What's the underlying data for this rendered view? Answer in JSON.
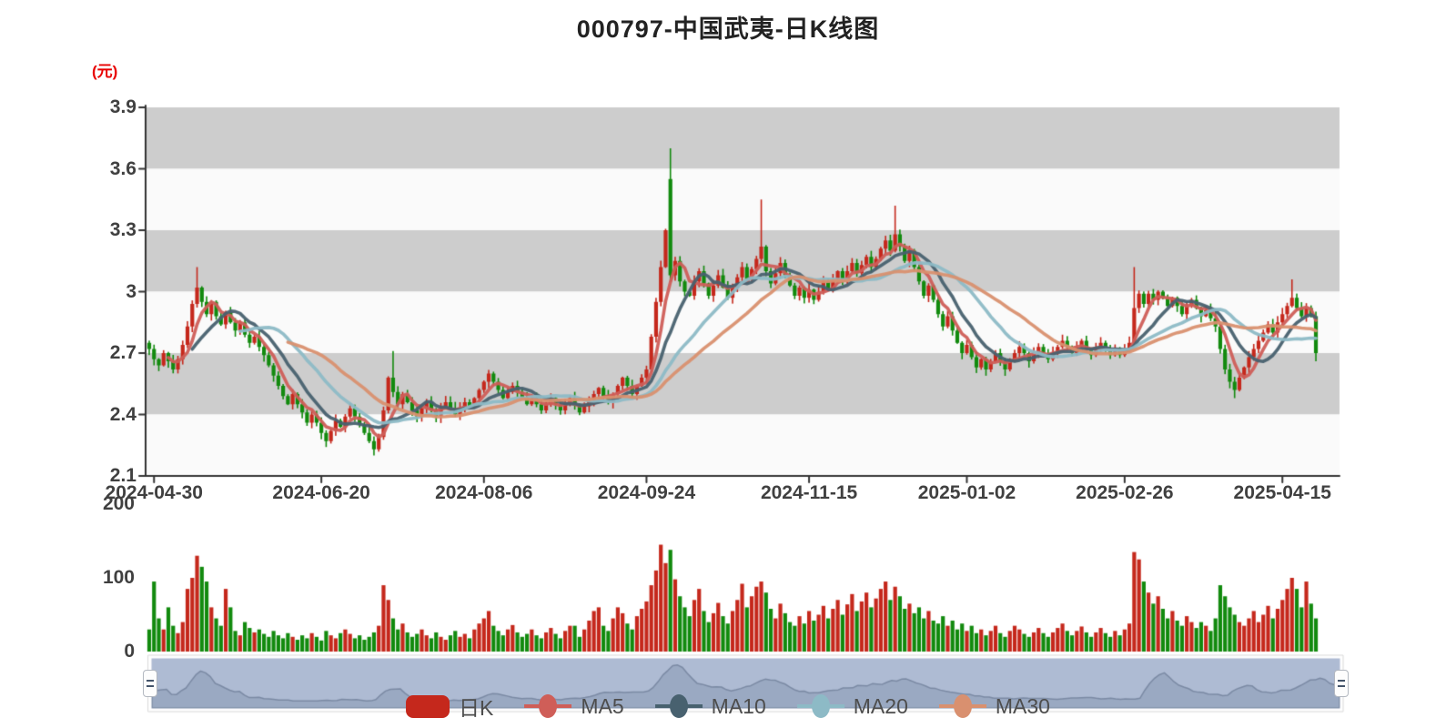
{
  "title": "000797-中国武夷-日K线图",
  "unit_label": "(元)",
  "colors": {
    "up_red": "#c5281c",
    "down_green": "#128a0e",
    "ma5": "#cf5e58",
    "ma10": "#48616f",
    "ma20": "#8dbac6",
    "ma30": "#d9906f",
    "axis": "#333333",
    "band_gray": "#cdcdcd",
    "band_light": "#fafafa",
    "unit_label_color": "#e80000",
    "nav_fill": "#aebbd3",
    "nav_line": "#7b8aa4",
    "nav_area": "rgba(110,128,156,0.30)"
  },
  "legend": {
    "items": [
      {
        "label": "日K",
        "type": "candlestick",
        "color": "#c5281c"
      },
      {
        "label": "MA5",
        "type": "line",
        "color": "#cf5e58"
      },
      {
        "label": "MA10",
        "type": "line",
        "color": "#48616f"
      },
      {
        "label": "MA20",
        "type": "line",
        "color": "#8dbac6"
      },
      {
        "label": "MA30",
        "type": "line",
        "color": "#d9906f"
      }
    ]
  },
  "price_axis": {
    "ticks": [
      "3.9",
      "3.6",
      "3.3",
      "3",
      "2.7",
      "2.4",
      "2.1"
    ],
    "max": 3.9,
    "min": 2.1
  },
  "volume_axis": {
    "ticks": [
      "200",
      "100",
      "0"
    ],
    "max": 200,
    "min": 0
  },
  "chart_data": {
    "type": "candlestick+volume+ma",
    "title": "000797-中国武夷-日K线图",
    "ylabel": "(元)",
    "ylim": [
      2.1,
      3.9
    ],
    "volume_ylim": [
      0,
      200
    ],
    "grid": "alternating-bands",
    "legend_position": "bottom-center",
    "x_tick_labels": [
      "2024-04-30",
      "2024-06-20",
      "2024-08-06",
      "2024-09-24",
      "2024-11-15",
      "2025-01-02",
      "2025-02-26",
      "2025-04-15"
    ],
    "x_tick_indices": [
      1,
      36,
      70,
      104,
      138,
      171,
      204,
      237
    ],
    "n_points": 245,
    "moving_averages": [
      5,
      10,
      20,
      30
    ],
    "first_open": 2.75,
    "closes": [
      2.72,
      2.67,
      2.64,
      2.7,
      2.66,
      2.62,
      2.67,
      2.74,
      2.83,
      2.94,
      3.02,
      2.95,
      2.89,
      2.95,
      2.88,
      2.84,
      2.9,
      2.85,
      2.81,
      2.85,
      2.79,
      2.75,
      2.78,
      2.73,
      2.69,
      2.64,
      2.59,
      2.54,
      2.49,
      2.45,
      2.5,
      2.45,
      2.41,
      2.36,
      2.4,
      2.36,
      2.31,
      2.27,
      2.32,
      2.37,
      2.34,
      2.39,
      2.43,
      2.39,
      2.35,
      2.31,
      2.27,
      2.23,
      2.29,
      2.42,
      2.58,
      2.51,
      2.45,
      2.5,
      2.46,
      2.42,
      2.39,
      2.43,
      2.46,
      2.42,
      2.39,
      2.43,
      2.46,
      2.43,
      2.4,
      2.43,
      2.46,
      2.44,
      2.48,
      2.52,
      2.56,
      2.6,
      2.56,
      2.52,
      2.48,
      2.51,
      2.54,
      2.51,
      2.48,
      2.45,
      2.48,
      2.45,
      2.42,
      2.45,
      2.48,
      2.45,
      2.42,
      2.45,
      2.48,
      2.45,
      2.41,
      2.44,
      2.47,
      2.5,
      2.53,
      2.49,
      2.46,
      2.5,
      2.54,
      2.58,
      2.54,
      2.5,
      2.54,
      2.58,
      2.62,
      2.78,
      2.95,
      3.12,
      3.3,
      3.08,
      3.15,
      3.05,
      3.0,
      2.98,
      3.05,
      3.1,
      3.04,
      2.98,
      3.03,
      3.08,
      3.02,
      2.97,
      3.02,
      3.07,
      3.12,
      3.06,
      3.11,
      3.16,
      3.22,
      3.1,
      3.04,
      3.09,
      3.14,
      3.08,
      3.03,
      2.98,
      3.02,
      2.97,
      3.01,
      2.96,
      3.0,
      3.05,
      3.01,
      3.06,
      3.1,
      3.05,
      3.1,
      3.14,
      3.09,
      3.13,
      3.17,
      3.12,
      3.16,
      3.21,
      3.25,
      3.2,
      3.28,
      3.22,
      3.15,
      3.2,
      3.12,
      3.05,
      2.98,
      3.03,
      2.96,
      2.89,
      2.83,
      2.88,
      2.81,
      2.75,
      2.7,
      2.74,
      2.68,
      2.63,
      2.67,
      2.62,
      2.66,
      2.7,
      2.66,
      2.62,
      2.66,
      2.7,
      2.73,
      2.7,
      2.66,
      2.7,
      2.73,
      2.7,
      2.67,
      2.7,
      2.73,
      2.76,
      2.73,
      2.7,
      2.73,
      2.76,
      2.72,
      2.69,
      2.72,
      2.75,
      2.72,
      2.69,
      2.72,
      2.69,
      2.72,
      2.75,
      2.92,
      2.99,
      2.94,
      2.99,
      2.96,
      3.0,
      2.97,
      2.93,
      2.97,
      2.93,
      2.89,
      2.93,
      2.96,
      2.92,
      2.88,
      2.91,
      2.87,
      2.83,
      2.72,
      2.62,
      2.56,
      2.52,
      2.58,
      2.63,
      2.68,
      2.72,
      2.76,
      2.8,
      2.84,
      2.8,
      2.85,
      2.89,
      2.93,
      2.97,
      2.92,
      2.88,
      2.92,
      2.88,
      2.7
    ],
    "volumes": [
      30,
      95,
      45,
      30,
      60,
      35,
      25,
      40,
      85,
      100,
      130,
      115,
      95,
      60,
      45,
      35,
      85,
      60,
      28,
      22,
      40,
      32,
      26,
      30,
      24,
      20,
      28,
      22,
      18,
      25,
      20,
      16,
      22,
      18,
      25,
      20,
      15,
      28,
      22,
      18,
      25,
      30,
      24,
      18,
      22,
      16,
      20,
      26,
      35,
      90,
      70,
      45,
      30,
      38,
      26,
      20,
      24,
      30,
      22,
      18,
      26,
      20,
      16,
      22,
      28,
      20,
      24,
      18,
      30,
      38,
      45,
      55,
      35,
      28,
      22,
      30,
      36,
      26,
      20,
      24,
      30,
      22,
      18,
      26,
      32,
      24,
      18,
      28,
      35,
      35,
      20,
      30,
      42,
      55,
      60,
      35,
      28,
      45,
      60,
      52,
      38,
      30,
      48,
      58,
      68,
      90,
      110,
      145,
      120,
      138,
      98,
      75,
      60,
      48,
      70,
      85,
      55,
      40,
      52,
      66,
      48,
      38,
      55,
      70,
      92,
      60,
      75,
      88,
      95,
      80,
      58,
      45,
      65,
      52,
      40,
      35,
      48,
      38,
      55,
      42,
      50,
      62,
      45,
      58,
      70,
      50,
      64,
      78,
      55,
      68,
      80,
      60,
      72,
      85,
      95,
      70,
      88,
      75,
      58,
      65,
      52,
      60,
      45,
      55,
      42,
      38,
      48,
      35,
      42,
      30,
      38,
      28,
      35,
      25,
      30,
      22,
      28,
      35,
      25,
      20,
      28,
      35,
      30,
      24,
      20,
      26,
      32,
      25,
      20,
      26,
      32,
      38,
      28,
      22,
      28,
      34,
      26,
      20,
      26,
      32,
      25,
      20,
      28,
      22,
      30,
      38,
      135,
      125,
      95,
      80,
      65,
      75,
      58,
      45,
      55,
      42,
      35,
      48,
      40,
      32,
      40,
      35,
      28,
      45,
      90,
      75,
      60,
      50,
      40,
      35,
      45,
      55,
      40,
      50,
      62,
      45,
      58,
      70,
      85,
      100,
      85,
      60,
      95,
      65,
      45
    ],
    "open_overrides": {
      "109": 3.55
    },
    "high_overrides": {
      "10": 3.12,
      "51": 2.71,
      "109": 3.7,
      "128": 3.45,
      "156": 3.42,
      "206": 3.12,
      "239": 3.06
    },
    "low_overrides": {
      "47": 2.2,
      "227": 2.48,
      "244": 2.66
    }
  }
}
